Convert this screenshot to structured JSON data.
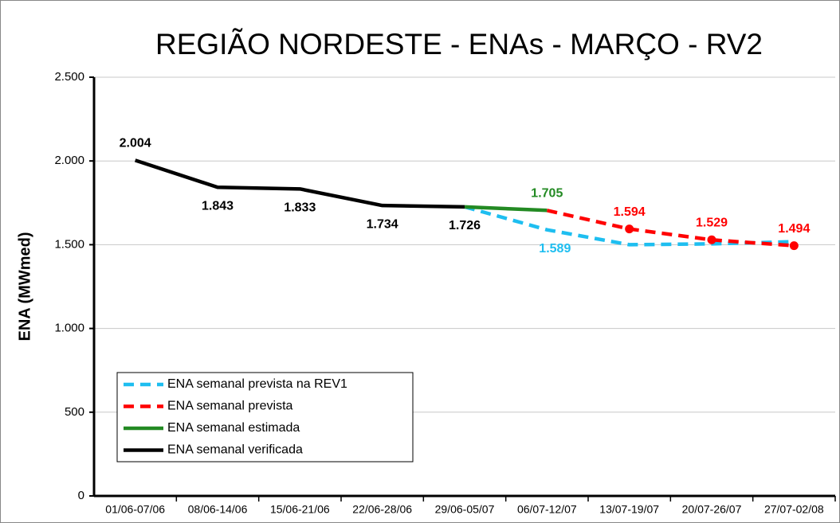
{
  "chart_data": {
    "type": "line",
    "title": "REGIÃO NORDESTE - ENAs - MARÇO - RV2",
    "ylabel": "ENA (MWmed)",
    "categories": [
      "01/06-07/06",
      "08/06-14/06",
      "15/06-21/06",
      "22/06-28/06",
      "29/06-05/07",
      "06/07-12/07",
      "13/07-19/07",
      "20/07-26/07",
      "27/07-02/08"
    ],
    "series": [
      {
        "name": "ENA semanal prevista na REV1",
        "color": "#1ebef0",
        "dash": true,
        "values": [
          null,
          null,
          null,
          null,
          1726,
          1589,
          1500,
          1505,
          1518
        ],
        "value_labels": [
          null,
          null,
          null,
          null,
          null,
          "1.589",
          null,
          null,
          null
        ]
      },
      {
        "name": "ENA semanal prevista",
        "color": "#ff0000",
        "dash": true,
        "marker": "circle",
        "values": [
          null,
          null,
          null,
          null,
          null,
          1705,
          1594,
          1529,
          1494
        ],
        "value_labels": [
          null,
          null,
          null,
          null,
          null,
          null,
          "1.594",
          "1.529",
          "1.494"
        ]
      },
      {
        "name": "ENA semanal estimada",
        "color": "#238a23",
        "values": [
          null,
          null,
          null,
          null,
          1726,
          1705,
          null,
          null,
          null
        ],
        "value_labels": [
          null,
          null,
          null,
          null,
          null,
          "1.705",
          null,
          null,
          null
        ]
      },
      {
        "name": "ENA semanal verificada",
        "color": "#000000",
        "values": [
          2004,
          1843,
          1833,
          1734,
          1726,
          null,
          null,
          null,
          null
        ],
        "value_labels": [
          "2.004",
          "1.843",
          "1.833",
          "1.734",
          "1.726",
          null,
          null,
          null,
          null
        ]
      }
    ],
    "ylim": [
      0,
      2500
    ],
    "yticks": [
      0,
      500,
      {
        "value": 1000,
        "label": "1.000"
      },
      {
        "value": 1500,
        "label": "1.500"
      },
      {
        "value": 2000,
        "label": "2.000"
      },
      {
        "value": 2500,
        "label": "2.500"
      }
    ],
    "grid": true,
    "legend": "lower left"
  }
}
